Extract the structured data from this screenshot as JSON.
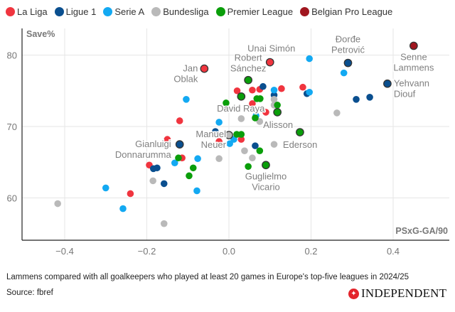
{
  "chart_data": {
    "type": "scatter",
    "ylabel": "Save%",
    "xlabel": "PSxG-GA/90",
    "xlim": [
      -0.55,
      0.55
    ],
    "ylim": [
      54,
      84
    ],
    "xticks": [
      "−0.4",
      "−0.2",
      "0.0",
      "0.2",
      "0.4"
    ],
    "xtick_values": [
      -0.4,
      -0.2,
      0,
      0.2,
      0.4
    ],
    "yticks": [
      "60",
      "70",
      "80"
    ],
    "ytick_values": [
      60,
      70,
      80
    ],
    "grid": true,
    "legend_position": "top-left",
    "series": [
      {
        "name": "La Liga",
        "color": "#f0353f",
        "points": [
          [
            0.02,
            75.0
          ],
          [
            0.057,
            75.1
          ],
          [
            0.075,
            75.2
          ],
          [
            0.128,
            75.3
          ],
          [
            0.18,
            75.5
          ],
          [
            -0.12,
            70.8
          ],
          [
            -0.15,
            68.2
          ],
          [
            -0.114,
            65.6
          ],
          [
            -0.194,
            64.6
          ],
          [
            -0.24,
            60.6
          ],
          [
            0.057,
            73.2
          ],
          [
            0.09,
            72.0
          ],
          [
            0.03,
            68.2
          ],
          [
            -0.024,
            67.9
          ]
        ]
      },
      {
        "name": "Ligue 1",
        "color": "#0a4f8f",
        "points": [
          [
            0.083,
            75.6
          ],
          [
            0.11,
            74.4
          ],
          [
            0.19,
            74.6
          ],
          [
            0.31,
            73.8
          ],
          [
            0.343,
            74.1
          ],
          [
            -0.033,
            69.3
          ],
          [
            0.064,
            67.3
          ],
          [
            -0.158,
            62.0
          ],
          [
            -0.184,
            64.1
          ],
          [
            -0.175,
            64.2
          ]
        ]
      },
      {
        "name": "Serie A",
        "color": "#13a9f2",
        "points": [
          [
            0.196,
            79.5
          ],
          [
            0.28,
            77.5
          ],
          [
            0.11,
            75.1
          ],
          [
            0.196,
            74.8
          ],
          [
            -0.104,
            73.8
          ],
          [
            -0.024,
            70.6
          ],
          [
            0.012,
            68.2
          ],
          [
            0.002,
            67.6
          ],
          [
            0.066,
            71.5
          ],
          [
            -0.076,
            65.5
          ],
          [
            -0.132,
            64.9
          ],
          [
            -0.3,
            61.4
          ],
          [
            -0.078,
            61.0
          ],
          [
            -0.258,
            58.5
          ]
        ]
      },
      {
        "name": "Bundesliga",
        "color": "#b9b9b9",
        "points": [
          [
            0.11,
            73.8
          ],
          [
            0.11,
            73.0
          ],
          [
            0.03,
            71.1
          ],
          [
            0.075,
            70.7
          ],
          [
            0.263,
            71.9
          ],
          [
            0.11,
            67.5
          ],
          [
            0.038,
            66.6
          ],
          [
            0.057,
            65.6
          ],
          [
            -0.024,
            65.5
          ],
          [
            -0.185,
            62.4
          ],
          [
            -0.417,
            59.2
          ],
          [
            -0.158,
            56.4
          ]
        ]
      },
      {
        "name": "Premier League",
        "color": "#0a9e0a",
        "points": [
          [
            -0.007,
            73.3
          ],
          [
            0.068,
            73.9
          ],
          [
            0.076,
            73.9
          ],
          [
            0.118,
            73.0
          ],
          [
            0.064,
            71.2
          ],
          [
            0.019,
            68.9
          ],
          [
            0.03,
            68.9
          ],
          [
            0.075,
            66.6
          ],
          [
            0.047,
            64.4
          ],
          [
            -0.123,
            65.6
          ],
          [
            -0.087,
            64.2
          ],
          [
            -0.097,
            63.1
          ]
        ]
      },
      {
        "name": "Belgian Pro League",
        "color": "#a0161f",
        "points": []
      }
    ],
    "highlighted": [
      {
        "label": [
          "Jan",
          "Oblak"
        ],
        "league": "La Liga",
        "x": -0.06,
        "y": 78.1
      },
      {
        "label": [
          "Unai Simón"
        ],
        "league": "La Liga",
        "x": 0.1,
        "y": 79.0
      },
      {
        "label": [
          "Đorđe",
          "Petrović"
        ],
        "league": "Ligue 1",
        "x": 0.29,
        "y": 78.9
      },
      {
        "label": [
          "Senne",
          "Lammens"
        ],
        "league": "Belgian Pro League",
        "x": 0.45,
        "y": 81.3
      },
      {
        "label": [
          "Yehvann",
          "Diouf"
        ],
        "league": "Ligue 1",
        "x": 0.386,
        "y": 76.0
      },
      {
        "label": [
          "Robert",
          "Sánchez"
        ],
        "league": "Premier League",
        "x": 0.047,
        "y": 76.5
      },
      {
        "label": [
          "David Raya"
        ],
        "league": "Premier League",
        "x": 0.03,
        "y": 74.2
      },
      {
        "label": [
          "Alisson"
        ],
        "league": "Premier League",
        "x": 0.118,
        "y": 72.0
      },
      {
        "label": [
          "Ederson"
        ],
        "league": "Premier League",
        "x": 0.173,
        "y": 69.2
      },
      {
        "label": [
          "Manuel",
          "Neuer"
        ],
        "league": "Bundesliga",
        "x": 0.0,
        "y": 68.8
      },
      {
        "label": [
          "Gianluigi",
          "Donnarumma"
        ],
        "league": "Ligue 1",
        "x": -0.12,
        "y": 67.5
      },
      {
        "label": [
          "Guglielmo",
          "Vicario"
        ],
        "league": "Premier League",
        "x": 0.09,
        "y": 64.6
      }
    ]
  },
  "footer": {
    "caption": "Lammens compared with all goalkeepers who played at least 20 games in Europe's top-five leagues in 2024/25",
    "source": "Source: fbref",
    "logo_text": "INDEPENDENT"
  }
}
